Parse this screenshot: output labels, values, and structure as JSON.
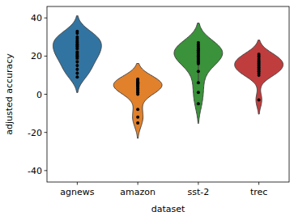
{
  "chart_data": {
    "type": "violin",
    "x_label": "dataset",
    "y_label": "adjusted accuracy",
    "categories": [
      "agnews",
      "amazon",
      "sst-2",
      "trec"
    ],
    "values": [
      [
        33,
        32,
        30,
        29,
        28,
        27,
        26,
        25,
        24,
        22,
        21,
        20,
        19,
        17,
        15,
        13,
        11,
        9
      ],
      [
        8,
        7.5,
        7,
        6.5,
        6,
        5.5,
        5,
        4.5,
        4,
        3,
        2,
        1,
        0,
        -8,
        -12,
        -15
      ],
      [
        27,
        26,
        25,
        24,
        24,
        23,
        22,
        21,
        20,
        19,
        18,
        17,
        16,
        12,
        6,
        1,
        -5
      ],
      [
        21,
        20,
        19,
        18,
        17,
        16,
        15,
        14,
        13,
        12,
        11,
        10,
        -3
      ]
    ],
    "colors": [
      "#3274a1",
      "#e1812c",
      "#3a923a",
      "#c03d3e"
    ],
    "ylim": [
      -46,
      46
    ],
    "yticks": [
      -40,
      -20,
      0,
      20,
      40
    ]
  }
}
